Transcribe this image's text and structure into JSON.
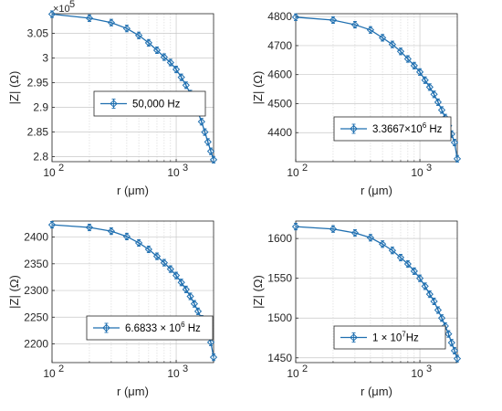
{
  "chart_data": [
    {
      "type": "line",
      "xlabel": "r (μm)",
      "ylabel": "|Z| (Ω)",
      "xscale": "log",
      "xlim": [
        100,
        2000
      ],
      "ylim": [
        279000,
        309000
      ],
      "yticks": [
        280000,
        285000,
        290000,
        295000,
        300000,
        305000
      ],
      "yticklabels": [
        "2.8",
        "2.85",
        "2.9",
        "2.95",
        "3",
        "3.05"
      ],
      "y_exponent_label": "×10",
      "y_exponent_power": "5",
      "xticklabels": [
        "10",
        "10"
      ],
      "xtick_powers": [
        "2",
        "3"
      ],
      "grid": true,
      "legend": {
        "position": "center-left",
        "entries": [
          {
            "text": "50,000 Hz"
          }
        ]
      },
      "color": "#1f6fb0",
      "marker": "diamond",
      "errorbars": true,
      "series": [
        {
          "x": [
            100,
            200,
            300,
            400,
            500,
            600,
            700,
            800,
            900,
            1000,
            1100,
            1200,
            1300,
            1400,
            1500,
            1600,
            1700,
            1800,
            1900,
            2000
          ],
          "y": [
            308900,
            308100,
            307200,
            306000,
            304600,
            303100,
            301600,
            300200,
            299100,
            297700,
            296100,
            294500,
            292800,
            291000,
            289000,
            287100,
            285000,
            283000,
            281100,
            279400
          ]
        }
      ]
    },
    {
      "type": "line",
      "xlabel": "r (μm)",
      "ylabel": "|Z| (Ω)",
      "xscale": "log",
      "xlim": [
        100,
        2000
      ],
      "ylim": [
        4300,
        4810
      ],
      "yticks": [
        4400,
        4500,
        4600,
        4700,
        4800
      ],
      "yticklabels": [
        "4400",
        "4500",
        "4600",
        "4700",
        "4800"
      ],
      "xticklabels": [
        "10",
        "10"
      ],
      "xtick_powers": [
        "2",
        "3"
      ],
      "grid": true,
      "legend": {
        "position": "lower-center",
        "entries": [
          {
            "text": "3.3667×10",
            "power": "6",
            "suffix": " Hz"
          }
        ]
      },
      "color": "#1f6fb0",
      "marker": "diamond",
      "errorbars": true,
      "series": [
        {
          "x": [
            100,
            200,
            300,
            400,
            500,
            600,
            700,
            800,
            900,
            1000,
            1100,
            1200,
            1300,
            1400,
            1500,
            1600,
            1700,
            1800,
            1900,
            2000
          ],
          "y": [
            4798,
            4788,
            4772,
            4754,
            4727,
            4704,
            4680,
            4654,
            4631,
            4609,
            4581,
            4557,
            4532,
            4505,
            4478,
            4452,
            4424,
            4395,
            4366,
            4310
          ]
        }
      ]
    },
    {
      "type": "line",
      "xlabel": "r (μm)",
      "ylabel": "|Z| (Ω)",
      "xscale": "log",
      "xlim": [
        100,
        2000
      ],
      "ylim": [
        2165,
        2430
      ],
      "yticks": [
        2200,
        2250,
        2300,
        2350,
        2400
      ],
      "yticklabels": [
        "2200",
        "2250",
        "2300",
        "2350",
        "2400"
      ],
      "xticklabels": [
        "10",
        "10"
      ],
      "xtick_powers": [
        "2",
        "3"
      ],
      "grid": true,
      "legend": {
        "position": "lower-center",
        "entries": [
          {
            "text": "6.6833 × 10",
            "power": "6",
            "suffix": " Hz"
          }
        ]
      },
      "color": "#1f6fb0",
      "marker": "diamond",
      "errorbars": true,
      "series": [
        {
          "x": [
            100,
            200,
            300,
            400,
            500,
            600,
            700,
            800,
            900,
            1000,
            1100,
            1200,
            1300,
            1400,
            1500,
            1600,
            1700,
            1800,
            1900,
            2000
          ],
          "y": [
            2423,
            2418,
            2411,
            2401,
            2389,
            2377,
            2364,
            2352,
            2340,
            2328,
            2315,
            2302,
            2289,
            2275,
            2261,
            2247,
            2232,
            2218,
            2203,
            2175
          ]
        }
      ]
    },
    {
      "type": "line",
      "xlabel": "r (μm)",
      "ylabel": "|Z| (Ω)",
      "xscale": "log",
      "xlim": [
        100,
        2000
      ],
      "ylim": [
        1444,
        1622
      ],
      "yticks": [
        1450,
        1500,
        1550,
        1600
      ],
      "yticklabels": [
        "1450",
        "1500",
        "1550",
        "1600"
      ],
      "xticklabels": [
        "10",
        "10"
      ],
      "xtick_powers": [
        "2",
        "3"
      ],
      "grid": true,
      "legend": {
        "position": "lower-center",
        "entries": [
          {
            "text": "1 × 10",
            "power": "7",
            "suffix": "Hz"
          }
        ]
      },
      "color": "#1f6fb0",
      "marker": "diamond",
      "errorbars": true,
      "series": [
        {
          "x": [
            100,
            200,
            300,
            400,
            500,
            600,
            700,
            800,
            900,
            1000,
            1100,
            1200,
            1300,
            1400,
            1500,
            1600,
            1700,
            1800,
            1900,
            2000
          ],
          "y": [
            1615,
            1612,
            1607,
            1601,
            1593,
            1585,
            1576,
            1568,
            1559,
            1550,
            1540,
            1530,
            1521,
            1510,
            1500,
            1490,
            1480,
            1469,
            1459,
            1449
          ]
        }
      ]
    }
  ]
}
